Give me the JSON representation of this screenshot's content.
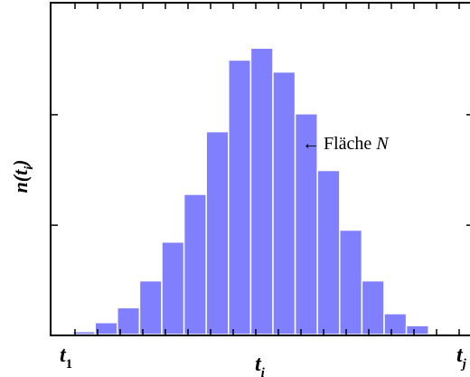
{
  "chart_data": {
    "type": "bar",
    "title": "",
    "xlabel": "",
    "ylabel": {
      "main": "n(t",
      "sub": "i",
      "close": ")"
    },
    "bar_color": "#8080ff",
    "bar_edge_color": "#ffffff",
    "ylim": [
      0,
      100
    ],
    "yticks": [
      0,
      33.3,
      66.7,
      100
    ],
    "values": [
      0,
      1,
      4,
      9,
      18,
      31,
      47,
      68,
      92,
      96,
      88,
      74,
      55,
      35,
      18,
      7,
      3,
      0.5
    ],
    "x_tick_labels": [
      {
        "text": "t",
        "sub": "1"
      },
      {
        "text": "t",
        "sub": "i"
      },
      {
        "text": "t",
        "sub": "j"
      }
    ],
    "annotation": {
      "arrow": "←",
      "text": "Fläche ",
      "italic": "N"
    }
  }
}
